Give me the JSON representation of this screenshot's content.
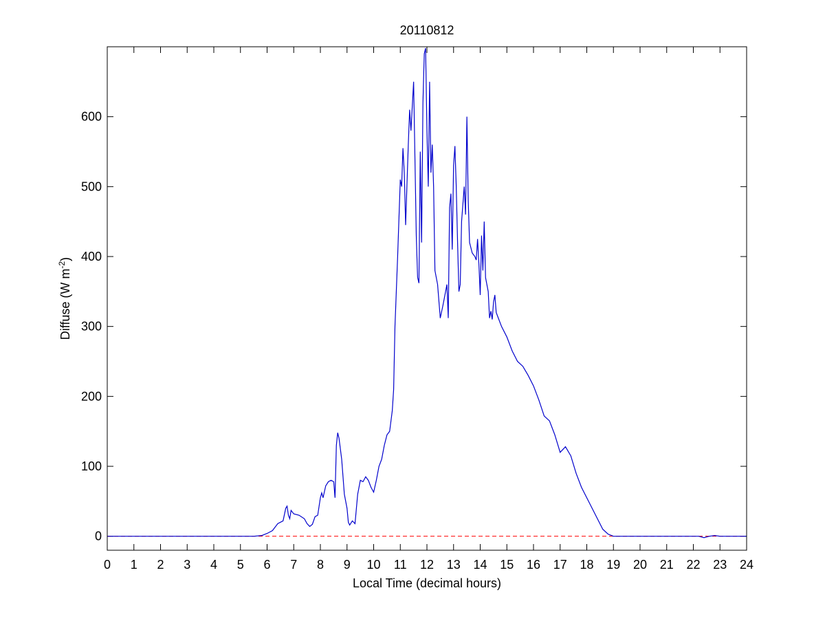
{
  "chart_data": {
    "type": "line",
    "title": "20110812",
    "xlabel": "Local Time (decimal hours)",
    "ylabel": {
      "text": "Diffuse (W m",
      "superscript": "-2",
      "suffix": ")"
    },
    "x": [
      0,
      5.5,
      5.8,
      6.0,
      6.2,
      6.4,
      6.6,
      6.7,
      6.75,
      6.8,
      6.85,
      6.9,
      7.0,
      7.2,
      7.4,
      7.5,
      7.6,
      7.7,
      7.8,
      7.9,
      8.0,
      8.05,
      8.1,
      8.2,
      8.3,
      8.4,
      8.5,
      8.55,
      8.6,
      8.65,
      8.7,
      8.8,
      8.9,
      9.0,
      9.05,
      9.1,
      9.2,
      9.3,
      9.4,
      9.5,
      9.6,
      9.7,
      9.8,
      9.9,
      10.0,
      10.1,
      10.2,
      10.3,
      10.4,
      10.5,
      10.6,
      10.7,
      10.75,
      10.8,
      10.9,
      11.0,
      11.05,
      11.1,
      11.15,
      11.2,
      11.3,
      11.35,
      11.4,
      11.5,
      11.55,
      11.6,
      11.65,
      11.7,
      11.75,
      11.8,
      11.85,
      11.9,
      11.95,
      12.0,
      12.05,
      12.1,
      12.15,
      12.2,
      12.25,
      12.3,
      12.4,
      12.5,
      12.6,
      12.7,
      12.75,
      12.8,
      12.85,
      12.9,
      12.95,
      13.0,
      13.05,
      13.1,
      13.15,
      13.2,
      13.25,
      13.3,
      13.4,
      13.45,
      13.5,
      13.55,
      13.6,
      13.7,
      13.8,
      13.85,
      13.9,
      13.95,
      14.0,
      14.05,
      14.1,
      14.15,
      14.2,
      14.3,
      14.35,
      14.4,
      14.45,
      14.5,
      14.55,
      14.6,
      14.7,
      14.8,
      15.0,
      15.2,
      15.4,
      15.6,
      15.8,
      16.0,
      16.2,
      16.4,
      16.6,
      16.8,
      17.0,
      17.2,
      17.4,
      17.6,
      17.8,
      18.0,
      18.2,
      18.4,
      18.6,
      18.8,
      19.0,
      22.2,
      22.4,
      22.6,
      22.8,
      23.0,
      24
    ],
    "values": [
      0,
      0,
      1,
      4,
      8,
      18,
      22,
      40,
      43,
      30,
      25,
      37,
      32,
      30,
      25,
      18,
      14,
      17,
      28,
      30,
      55,
      62,
      55,
      72,
      78,
      80,
      78,
      55,
      130,
      148,
      140,
      110,
      60,
      40,
      20,
      16,
      22,
      18,
      60,
      80,
      78,
      85,
      80,
      70,
      63,
      80,
      100,
      110,
      130,
      145,
      150,
      180,
      210,
      300,
      400,
      510,
      500,
      555,
      520,
      445,
      560,
      610,
      580,
      650,
      540,
      430,
      370,
      362,
      550,
      420,
      620,
      690,
      698,
      580,
      500,
      650,
      520,
      560,
      500,
      380,
      360,
      312,
      330,
      350,
      360,
      312,
      470,
      490,
      410,
      530,
      558,
      500,
      420,
      350,
      360,
      450,
      500,
      460,
      600,
      480,
      420,
      405,
      400,
      395,
      425,
      390,
      345,
      430,
      380,
      450,
      370,
      350,
      312,
      322,
      310,
      335,
      345,
      320,
      310,
      300,
      285,
      265,
      250,
      243,
      230,
      215,
      195,
      172,
      165,
      145,
      120,
      128,
      115,
      90,
      70,
      55,
      40,
      25,
      10,
      3,
      0,
      0,
      -2,
      0,
      1,
      0,
      0
    ],
    "color": "#0000cc",
    "reference_line": {
      "value": 0,
      "color": "#ff0000",
      "dashed": true
    },
    "xlim": [
      0,
      24
    ],
    "xticks": [
      0,
      1,
      2,
      3,
      4,
      5,
      6,
      7,
      8,
      9,
      10,
      11,
      12,
      13,
      14,
      15,
      16,
      17,
      18,
      19,
      20,
      21,
      22,
      23,
      24
    ],
    "ylim": [
      -20,
      700
    ],
    "yticks": [
      0,
      100,
      200,
      300,
      400,
      500,
      600
    ],
    "grid": false
  }
}
